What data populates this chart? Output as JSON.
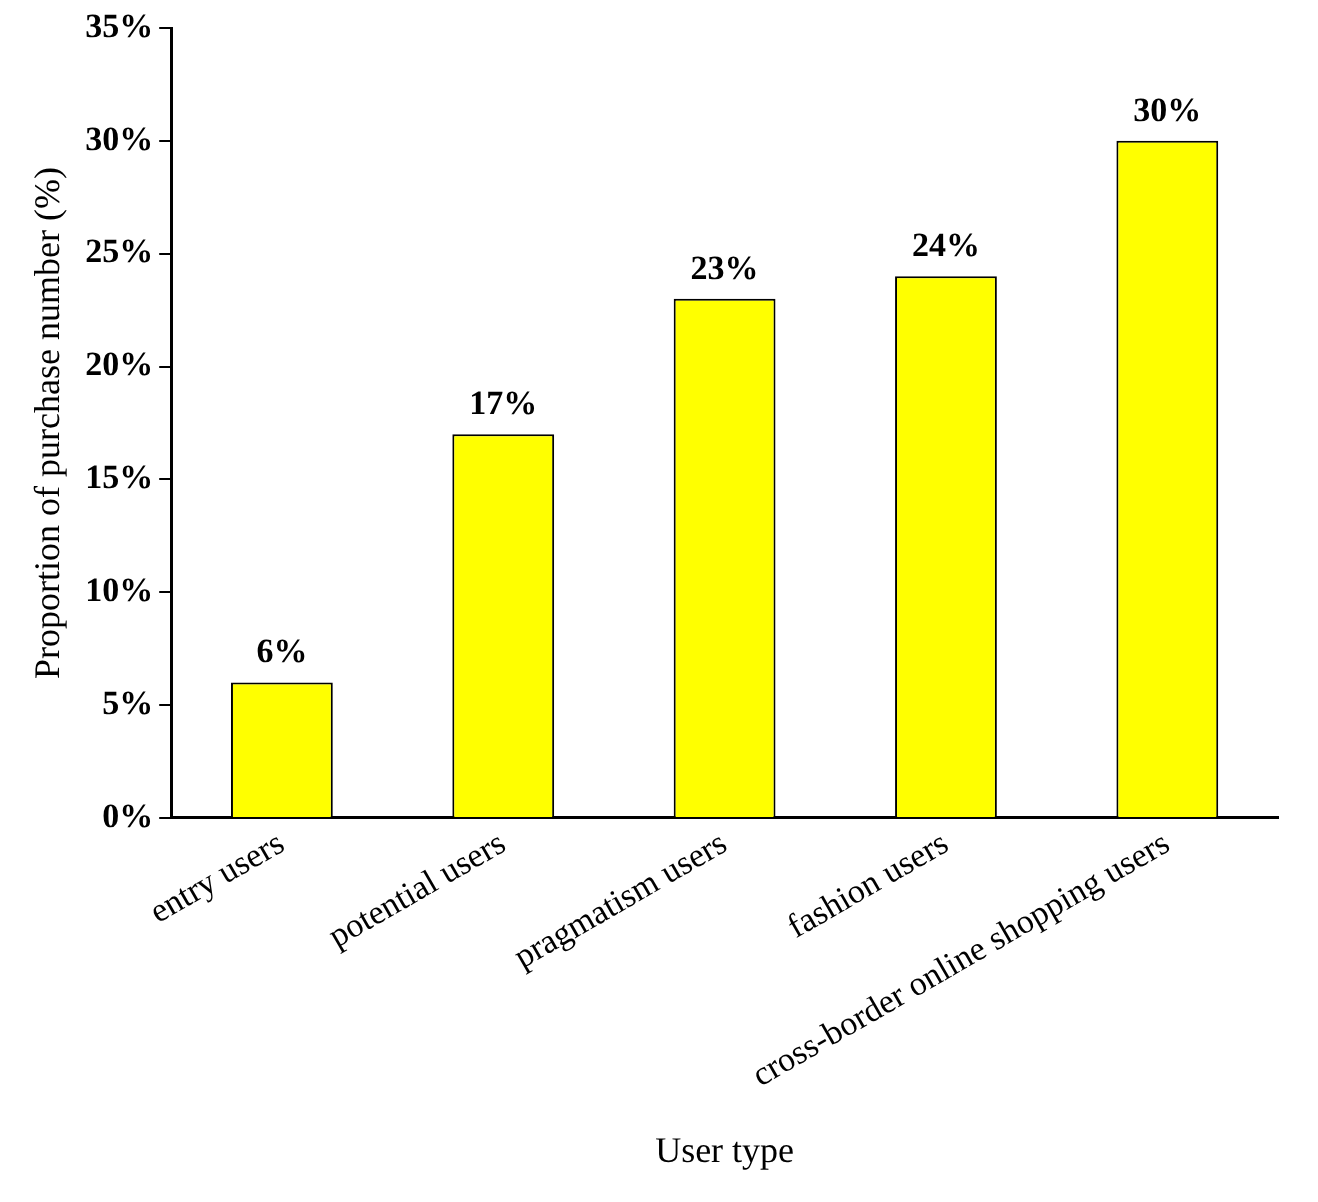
{
  "chart_data": {
    "type": "bar",
    "xlabel": "User type",
    "ylabel": "Proportion of purchase number (%)",
    "categories": [
      "entry users",
      "potential users",
      "pragmatism users",
      "fashion users",
      "cross-border online shopping users"
    ],
    "values": [
      6,
      17,
      23,
      24,
      30
    ],
    "color": "#ffff00",
    "value_labels": [
      "6%",
      "17%",
      "23%",
      "24%",
      "30%"
    ],
    "ylim": [
      0,
      35
    ],
    "yticks": [
      {
        "value": 0,
        "label": "0%"
      },
      {
        "value": 5,
        "label": "5%"
      },
      {
        "value": 10,
        "label": "10%"
      },
      {
        "value": 15,
        "label": "15%"
      },
      {
        "value": 20,
        "label": "20%"
      },
      {
        "value": 25,
        "label": "25%"
      },
      {
        "value": 30,
        "label": "30%"
      },
      {
        "value": 35,
        "label": "35%"
      }
    ],
    "grid": false,
    "legend": false
  }
}
